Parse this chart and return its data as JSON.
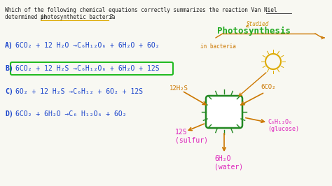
{
  "bg_color": "#f8f8f2",
  "question_color": "#222222",
  "highlight_color": "#22bb22",
  "options": [
    {
      "label": "A)",
      "eq1": "6CO₂ + 12 H₂O →",
      "eq2": "C₆H₁₂O₆ + 6H₂O + 6O₂",
      "highlight": false
    },
    {
      "label": "B)",
      "eq1": "6CO₂ + 12 H₂S →",
      "eq2": "C₆H₁₂O₆ + 6H₂O + 12S",
      "highlight": true
    },
    {
      "label": "C)",
      "eq1": "6O₂ + 12 H₂S →",
      "eq2": "C₆H₁₂ + 6O₂ + 12S",
      "highlight": false
    },
    {
      "label": "D)",
      "eq1": "6CO₂ + 6H₂O →",
      "eq2": "C₆ H₁₂O₆ + 6O₂",
      "highlight": false
    }
  ],
  "label_color": "#1a44cc",
  "eq_color": "#1a44cc",
  "photosynthesis_label": "Photosynthesis",
  "photosynthesis_color": "#22aa22",
  "studied_label": "Studied",
  "studied_color": "#cc8800",
  "in_bacteria_label": "in bacteria",
  "in_bacteria_color": "#cc7700",
  "h2s_label": "12H₂S",
  "h2s_color": "#cc7700",
  "co2_label": "6CO₂",
  "co2_color": "#cc7700",
  "glucose_label": "C₆H₁₂O₆\n(glucose)",
  "glucose_color": "#dd22bb",
  "water_label": "6H₂O\n(water)",
  "water_color": "#dd22bb",
  "sulfur_label": "12S\n(sulfur)",
  "sulfur_color": "#dd22bb",
  "bacteria_color": "#228822",
  "sun_color": "#ddaa00",
  "arrow_color": "#cc7700",
  "van_niel_underline_color": "#cc8800"
}
